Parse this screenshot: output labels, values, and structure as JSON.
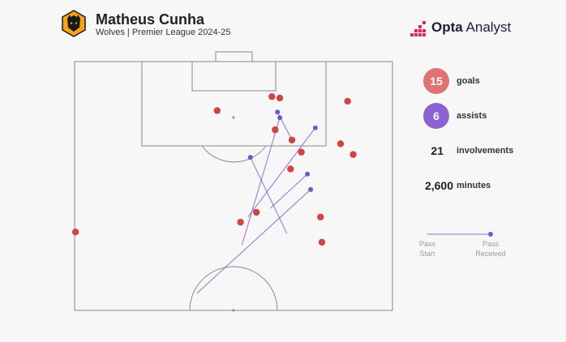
{
  "header": {
    "player_name": "Matheus Cunha",
    "subtitle": "Wolves | Premier League 2024-25",
    "brand_bold": "Opta",
    "brand_regular": " Analyst"
  },
  "stats": {
    "goals_value": "15",
    "goals_label": "goals",
    "assists_value": "6",
    "assists_label": "assists",
    "involvements_value": "21",
    "involvements_label": "involvements",
    "minutes_value": "2,600",
    "minutes_label": "minutes"
  },
  "legend": {
    "start_line1": "Pass",
    "start_line2": "Start",
    "end_line1": "Pass",
    "end_line2": "Received"
  },
  "colors": {
    "goal": "#cf4444",
    "goal_bubble": "#e07272",
    "assist": "#7a55c7",
    "assist_bubble": "#8a62d1",
    "pitch_line": "#888888"
  },
  "chart_data": {
    "type": "scatter",
    "goals": [
      {
        "x": 0.2,
        "y": -36.5
      },
      {
        "x": 30.5,
        "y": -10.5
      },
      {
        "x": 42.2,
        "y": -7.5
      },
      {
        "x": 43.9,
        "y": -7.8
      },
      {
        "x": 42.9,
        "y": -14.6
      },
      {
        "x": 46.5,
        "y": -16.8
      },
      {
        "x": 48.5,
        "y": -19.4
      },
      {
        "x": 46.2,
        "y": -23.0
      },
      {
        "x": 58.4,
        "y": -8.5
      },
      {
        "x": 56.9,
        "y": -17.6
      },
      {
        "x": 59.6,
        "y": -19.9
      },
      {
        "x": 38.9,
        "y": -32.3
      },
      {
        "x": 35.5,
        "y": -34.4
      },
      {
        "x": 52.6,
        "y": -33.3
      },
      {
        "x": 52.9,
        "y": -38.7
      }
    ],
    "assists": [
      {
        "start": {
          "x": 26.2,
          "y": -49.6
        },
        "end": {
          "x": 50.5,
          "y": -27.4
        }
      },
      {
        "start": {
          "x": 35.8,
          "y": -39.3
        },
        "end": {
          "x": 43.9,
          "y": -12.0
        }
      },
      {
        "start": {
          "x": 37.1,
          "y": -33.3
        },
        "end": {
          "x": 51.5,
          "y": -14.2
        }
      },
      {
        "start": {
          "x": 46.5,
          "y": -16.8
        },
        "end": {
          "x": 43.4,
          "y": -10.8
        }
      },
      {
        "start": {
          "x": 41.9,
          "y": -31.4
        },
        "end": {
          "x": 49.8,
          "y": -24.1
        }
      },
      {
        "start": {
          "x": 45.4,
          "y": -36.8
        },
        "end": {
          "x": 37.6,
          "y": -20.5
        }
      }
    ]
  }
}
